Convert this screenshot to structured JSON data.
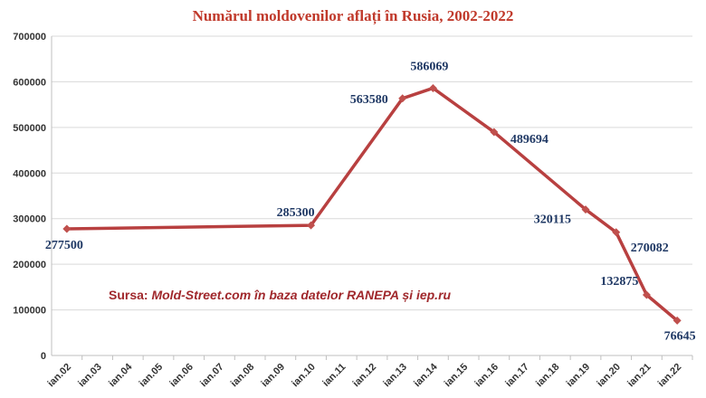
{
  "chart_data": {
    "type": "line",
    "title": "Numărul moldovenilor aflați în Rusia, 2002-2022",
    "source_prefix": "Sursa: ",
    "source_text": "Mold-Street.com în baza datelor RANEPA și iep.ru",
    "categories": [
      "ian.02",
      "ian.03",
      "ian.04",
      "ian.05",
      "ian.06",
      "ian.07",
      "ian.08",
      "ian.09",
      "ian.10",
      "ian.11",
      "ian.12",
      "ian.13",
      "ian.14",
      "ian.15",
      "ian.16",
      "ian.17",
      "ian.18",
      "ian.19",
      "ian.20",
      "ian.21",
      "ian.22"
    ],
    "points": [
      {
        "category": "ian.02",
        "value": 277500,
        "label": "277500"
      },
      {
        "category": "ian.10",
        "value": 285300,
        "label": "285300"
      },
      {
        "category": "ian.13",
        "value": 563580,
        "label": "563580"
      },
      {
        "category": "ian.14",
        "value": 586069,
        "label": "586069"
      },
      {
        "category": "ian.16",
        "value": 489694,
        "label": "489694"
      },
      {
        "category": "ian.19",
        "value": 320115,
        "label": "320115"
      },
      {
        "category": "ian.20",
        "value": 270082,
        "label": "270082"
      },
      {
        "category": "ian.21",
        "value": 132875,
        "label": "132875"
      },
      {
        "category": "ian.22",
        "value": 76645,
        "label": "76645"
      }
    ],
    "yticks": [
      0,
      100000,
      200000,
      300000,
      400000,
      500000,
      600000,
      700000
    ],
    "ylim": [
      0,
      700000
    ],
    "grid": true,
    "colors": {
      "line": "#b84040",
      "marker": "#c0504d",
      "title": "#c0392b",
      "data_label": "#1f3864",
      "source": "#a0282c",
      "grid": "#d9d9d9"
    }
  }
}
